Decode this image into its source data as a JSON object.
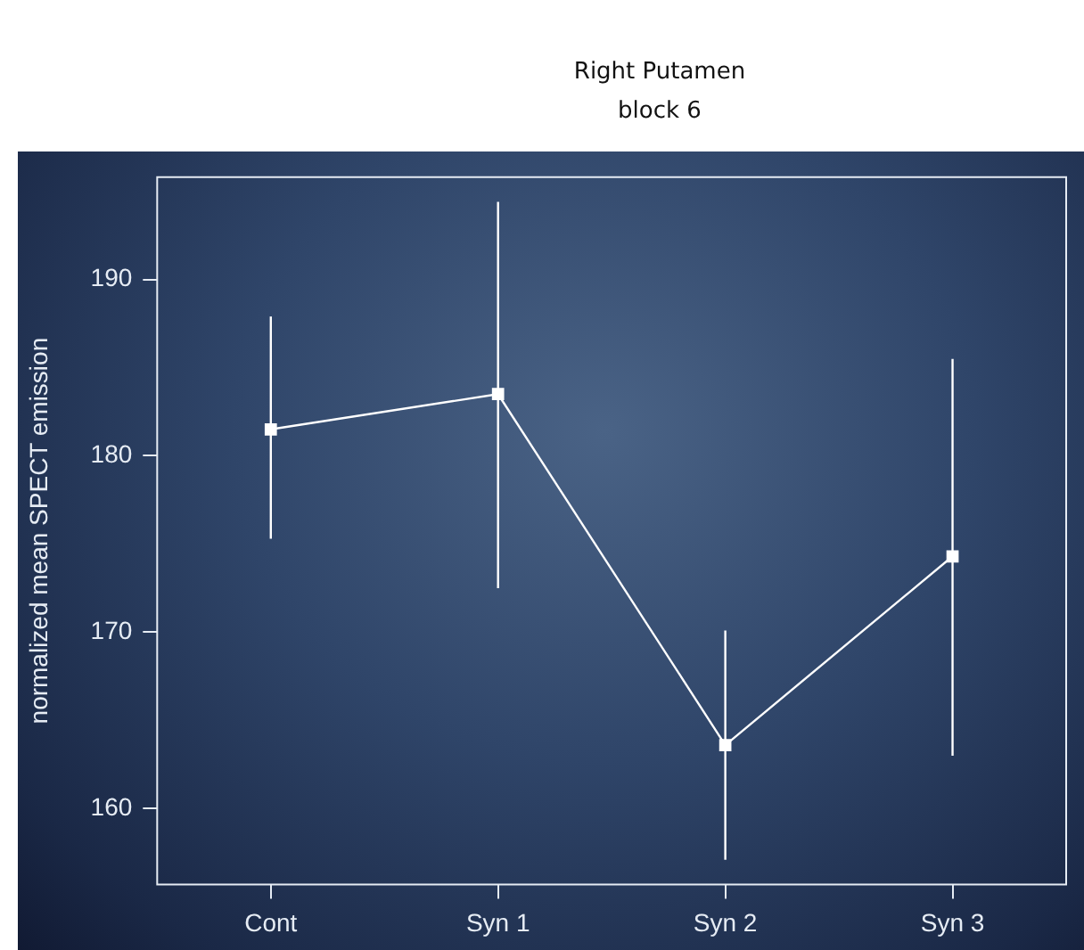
{
  "chart_data": {
    "type": "line",
    "title": "Right Putamen",
    "subtitle": "block 6",
    "ylabel": "normalized mean SPECT emission",
    "categories": [
      "Cont",
      "Syn 1",
      "Syn 2",
      "Syn 3"
    ],
    "series": [
      {
        "color": "#ffffff",
        "values": [
          181.5,
          183.5,
          163.6,
          174.3
        ],
        "errors": [
          [
            175.3,
            187.9
          ],
          [
            172.5,
            194.4
          ],
          [
            157.1,
            170.1
          ],
          [
            163.0,
            185.5
          ]
        ]
      }
    ],
    "ylim": [
      155.7,
      195.8
    ],
    "yticks": [
      160,
      170,
      180,
      190
    ],
    "grid": false,
    "legend": false,
    "marker": "square",
    "line_style": "solid"
  }
}
